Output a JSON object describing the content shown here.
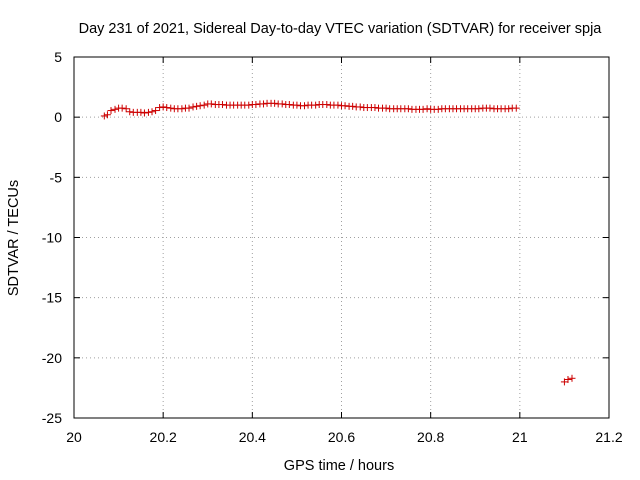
{
  "chart_data": {
    "type": "scatter",
    "title": "Day 231 of 2021, Sidereal Day-to-day VTEC variation (SDTVAR) for receiver spja",
    "xlabel": "GPS time / hours",
    "ylabel": "SDTVAR / TECUs",
    "xlim": [
      20,
      21.2
    ],
    "ylim": [
      -25,
      5
    ],
    "xticks": [
      20,
      20.2,
      20.4,
      20.6,
      20.8,
      21,
      21.2
    ],
    "xtick_labels": [
      "20",
      "20.2",
      "20.4",
      "20.6",
      "20.8",
      "21",
      "21.2"
    ],
    "yticks": [
      -25,
      -20,
      -15,
      -10,
      -5,
      0,
      5
    ],
    "ytick_labels": [
      "-25",
      "-20",
      "-15",
      "-10",
      "-5",
      "0",
      "5"
    ],
    "grid": true,
    "marker": "+",
    "colors": {
      "series": "#cc0000",
      "grid": "#a0a0a0",
      "axis": "#000000"
    },
    "series": [
      {
        "name": "SDTVAR",
        "x": [
          20.068,
          20.075,
          20.083,
          20.092,
          20.1,
          20.108,
          20.117,
          20.125,
          20.133,
          20.142,
          20.15,
          20.158,
          20.167,
          20.175,
          20.183,
          20.192,
          20.2,
          20.208,
          20.217,
          20.225,
          20.233,
          20.242,
          20.25,
          20.258,
          20.267,
          20.275,
          20.283,
          20.292,
          20.3,
          20.308,
          20.317,
          20.325,
          20.333,
          20.342,
          20.35,
          20.358,
          20.367,
          20.375,
          20.383,
          20.392,
          20.4,
          20.408,
          20.417,
          20.425,
          20.433,
          20.442,
          20.45,
          20.458,
          20.467,
          20.475,
          20.483,
          20.492,
          20.5,
          20.508,
          20.517,
          20.525,
          20.533,
          20.542,
          20.55,
          20.558,
          20.567,
          20.575,
          20.583,
          20.592,
          20.6,
          20.608,
          20.617,
          20.625,
          20.633,
          20.642,
          20.65,
          20.658,
          20.667,
          20.675,
          20.683,
          20.692,
          20.7,
          20.708,
          20.717,
          20.725,
          20.733,
          20.742,
          20.75,
          20.758,
          20.767,
          20.775,
          20.783,
          20.792,
          20.8,
          20.808,
          20.817,
          20.825,
          20.833,
          20.842,
          20.85,
          20.858,
          20.867,
          20.875,
          20.883,
          20.892,
          20.9,
          20.908,
          20.917,
          20.925,
          20.933,
          20.942,
          20.95,
          20.958,
          20.967,
          20.975,
          20.983,
          20.992,
          21.1,
          21.108,
          21.117
        ],
        "y": [
          0.1,
          0.2,
          0.55,
          0.65,
          0.75,
          0.75,
          0.7,
          0.45,
          0.4,
          0.4,
          0.4,
          0.35,
          0.4,
          0.45,
          0.55,
          0.8,
          0.85,
          0.8,
          0.75,
          0.7,
          0.7,
          0.7,
          0.75,
          0.75,
          0.85,
          0.9,
          0.95,
          1.0,
          1.1,
          1.1,
          1.05,
          1.05,
          1.05,
          1.0,
          1.0,
          1.0,
          1.0,
          1.0,
          1.0,
          1.0,
          1.05,
          1.05,
          1.1,
          1.1,
          1.15,
          1.15,
          1.15,
          1.1,
          1.1,
          1.05,
          1.05,
          1.0,
          1.0,
          0.95,
          0.95,
          1.0,
          1.0,
          1.0,
          1.05,
          1.05,
          1.05,
          1.0,
          1.0,
          1.0,
          0.95,
          0.95,
          0.9,
          0.9,
          0.85,
          0.85,
          0.8,
          0.8,
          0.8,
          0.8,
          0.75,
          0.75,
          0.75,
          0.7,
          0.7,
          0.7,
          0.7,
          0.7,
          0.7,
          0.65,
          0.65,
          0.65,
          0.65,
          0.7,
          0.65,
          0.65,
          0.65,
          0.7,
          0.7,
          0.7,
          0.7,
          0.7,
          0.7,
          0.7,
          0.7,
          0.7,
          0.7,
          0.7,
          0.75,
          0.75,
          0.75,
          0.7,
          0.7,
          0.7,
          0.7,
          0.7,
          0.75,
          0.75,
          -22.0,
          -21.8,
          -21.7
        ]
      }
    ]
  }
}
